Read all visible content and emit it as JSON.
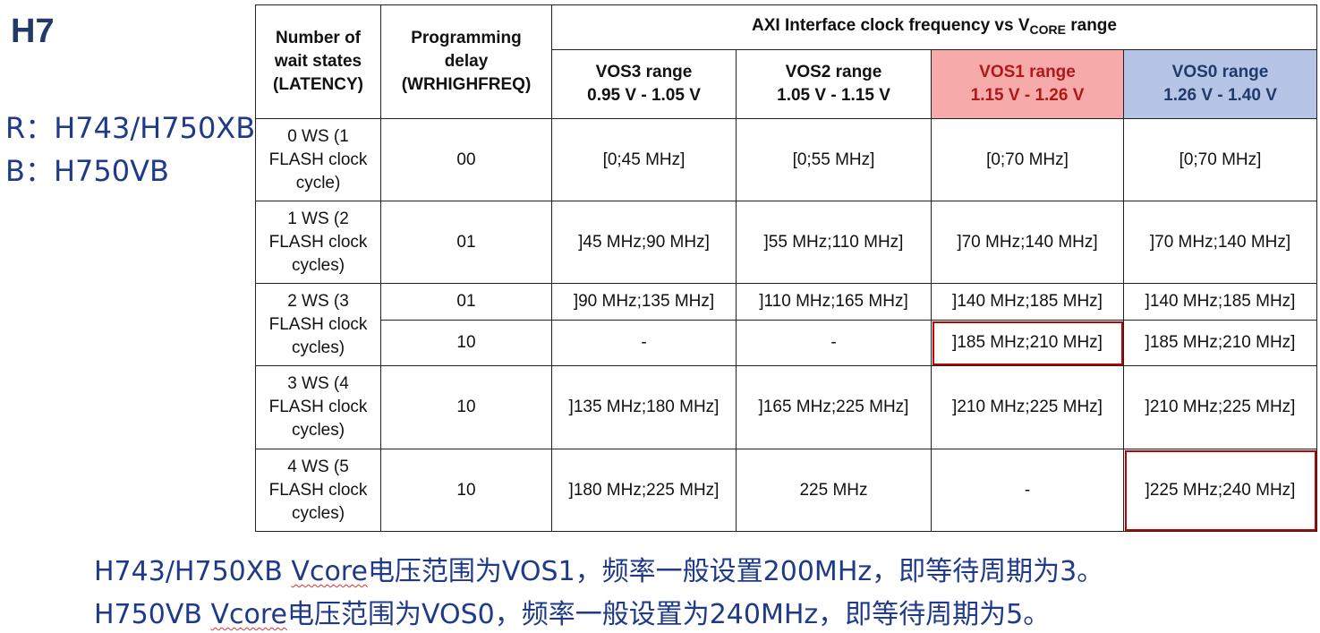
{
  "title": "H7",
  "side_notes": {
    "r": "R：H743/H750XB",
    "b": "B：H750VB"
  },
  "table": {
    "col_headers": {
      "ws": [
        "Number of",
        "wait states",
        "(LATENCY)"
      ],
      "delay": [
        "Programming",
        "delay",
        "(WRHIGHFREQ)"
      ],
      "group_prefix": "AXI Interface clock frequency vs V",
      "group_sub": "CORE",
      "group_suffix": " range",
      "vos": [
        {
          "name": "VOS3 range",
          "range": "0.95 V - 1.05 V"
        },
        {
          "name": "VOS2 range",
          "range": "1.05 V - 1.15 V"
        },
        {
          "name": "VOS1 range",
          "range": "1.15 V - 1.26 V"
        },
        {
          "name": "VOS0 range",
          "range": "1.26 V - 1.40 V"
        }
      ]
    },
    "rows": [
      {
        "ws": [
          "0 WS (1",
          "FLASH clock",
          "cycle)"
        ],
        "delay": "00",
        "vals": [
          "[0;45 MHz]",
          "[0;55 MHz]",
          "[0;70 MHz]",
          "[0;70 MHz]"
        ]
      },
      {
        "ws": [
          "1 WS (2",
          "FLASH clock",
          "cycles)"
        ],
        "delay": "01",
        "vals": [
          "]45 MHz;90 MHz]",
          "]55 MHz;110 MHz]",
          "]70 MHz;140 MHz]",
          "]70 MHz;140 MHz]"
        ]
      },
      {
        "ws": [
          "2 WS (3",
          "FLASH clock",
          "cycles)"
        ],
        "delay": "01",
        "vals": [
          "]90 MHz;135 MHz]",
          "]110 MHz;165 MHz]",
          "]140 MHz;185 MHz]",
          "]140 MHz;185 MHz]"
        ]
      },
      {
        "delay": "10",
        "vals": [
          "-",
          "-",
          "]185 MHz;210 MHz]",
          "]185 MHz;210 MHz]"
        ]
      },
      {
        "ws": [
          "3 WS (4",
          "FLASH clock",
          "cycles)"
        ],
        "delay": "10",
        "vals": [
          "]135 MHz;180 MHz]",
          "]165 MHz;225 MHz]",
          "]210 MHz;225 MHz]",
          "]210 MHz;225 MHz]"
        ]
      },
      {
        "ws": [
          "4 WS (5",
          "FLASH clock",
          "cycles)"
        ],
        "delay": "10",
        "vals": [
          "]180 MHz;225 MHz]",
          "225 MHz",
          "-",
          "]225 MHz;240 MHz]"
        ]
      }
    ]
  },
  "notes": {
    "n1_a": "H743/H750XB ",
    "n1_b": "Vcore",
    "n1_c": "电压范围为VOS1，频率一般设置200MHz，即等待周期为3。",
    "n2_a": "H750VB  ",
    "n2_b": "Vcore",
    "n2_c": "电压范围为VOS0，频率一般设置为240MHz，即等待周期为5。"
  },
  "colors": {
    "vos1_bg": "#f7aaaa",
    "vos0_bg": "#b6c5e6",
    "highlight": "#c00000",
    "text_blue": "#1f3a8a"
  }
}
